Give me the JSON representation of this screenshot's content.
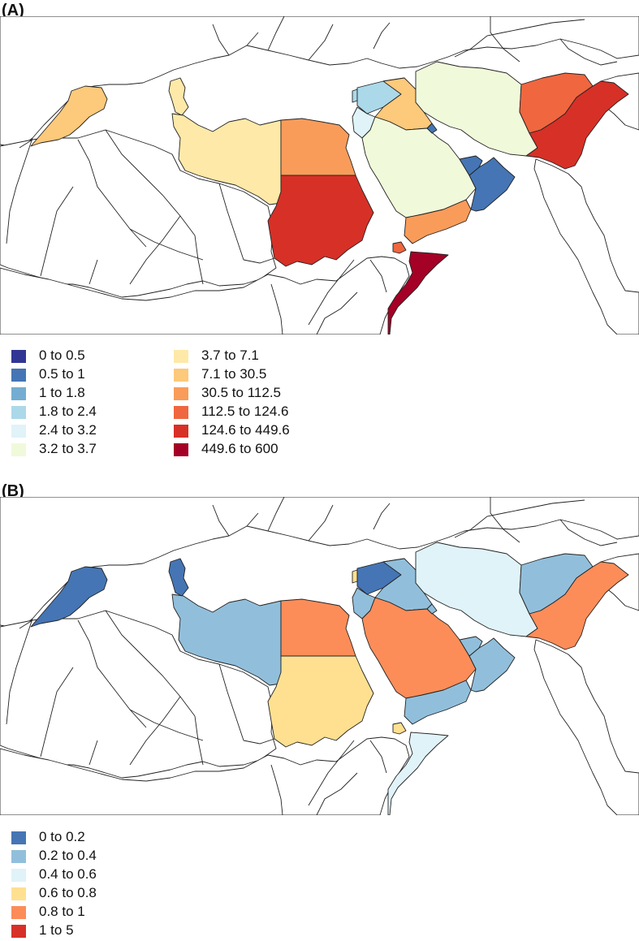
{
  "panels": [
    {
      "label": "(A)",
      "legend": [
        {
          "text": "0  to  0.5",
          "color": "#313695"
        },
        {
          "text": "0.5  to  1",
          "color": "#4575b4"
        },
        {
          "text": "1  to  1.8",
          "color": "#74add1"
        },
        {
          "text": "1.8  to  2.4",
          "color": "#abd9e9"
        },
        {
          "text": "2.4  to  3.2",
          "color": "#e0f3f8"
        },
        {
          "text": "3.2  to  3.7",
          "color": "#f1f9db"
        },
        {
          "text": "3.7  to  7.1",
          "color": "#fee9a8"
        },
        {
          "text": "7.1  to  30.5",
          "color": "#fdc97a"
        },
        {
          "text": "30.5  to  112.5",
          "color": "#f99c5a"
        },
        {
          "text": "112.5  to  124.6",
          "color": "#f0663f"
        },
        {
          "text": "124.6  to  449.6",
          "color": "#d73027"
        },
        {
          "text": "449.6  to  600",
          "color": "#a50026"
        }
      ],
      "regions": {
        "morocco": "#fdc97a",
        "tunisia": "#fee9a8",
        "libya": "#fee9a8",
        "egypt": "#f99c5a",
        "sudan": "#d73027",
        "somalia": "#a50026",
        "djibouti": "#f0663f",
        "lebanon": "#abd9e9",
        "syria": "#abd9e9",
        "jordan": "#e0f3f8",
        "iraq": "#fdc97a",
        "saudi": "#f1f9db",
        "yemen": "#f99c5a",
        "oman": "#4575b4",
        "uae": "#4575b4",
        "kuwait": "#4575b4",
        "iran": "#f1f9db",
        "afghanistan": "#f0663f",
        "pakistan": "#d73027"
      }
    },
    {
      "label": "(B)",
      "legend": [
        {
          "text": "0  to  0.2",
          "color": "#4575b4"
        },
        {
          "text": "0.2  to  0.4",
          "color": "#91bfdb"
        },
        {
          "text": "0.4  to  0.6",
          "color": "#e0f3f8"
        },
        {
          "text": "0.6  to  0.8",
          "color": "#fee090"
        },
        {
          "text": "0.8  to  1",
          "color": "#fc8d59"
        },
        {
          "text": "1  to  5",
          "color": "#d73027"
        }
      ],
      "regions": {
        "morocco": "#4575b4",
        "tunisia": "#4575b4",
        "libya": "#91bfdb",
        "egypt": "#fc8d59",
        "sudan": "#fee090",
        "somalia": "#e0f3f8",
        "djibouti": "#fee090",
        "lebanon": "#fee090",
        "syria": "#4575b4",
        "jordan": "#91bfdb",
        "iraq": "#91bfdb",
        "saudi": "#fc8d59",
        "yemen": "#91bfdb",
        "oman": "#91bfdb",
        "uae": "#91bfdb",
        "kuwait": "#91bfdb",
        "iran": "#e0f3f8",
        "afghanistan": "#91bfdb",
        "pakistan": "#fc8d59"
      }
    }
  ]
}
